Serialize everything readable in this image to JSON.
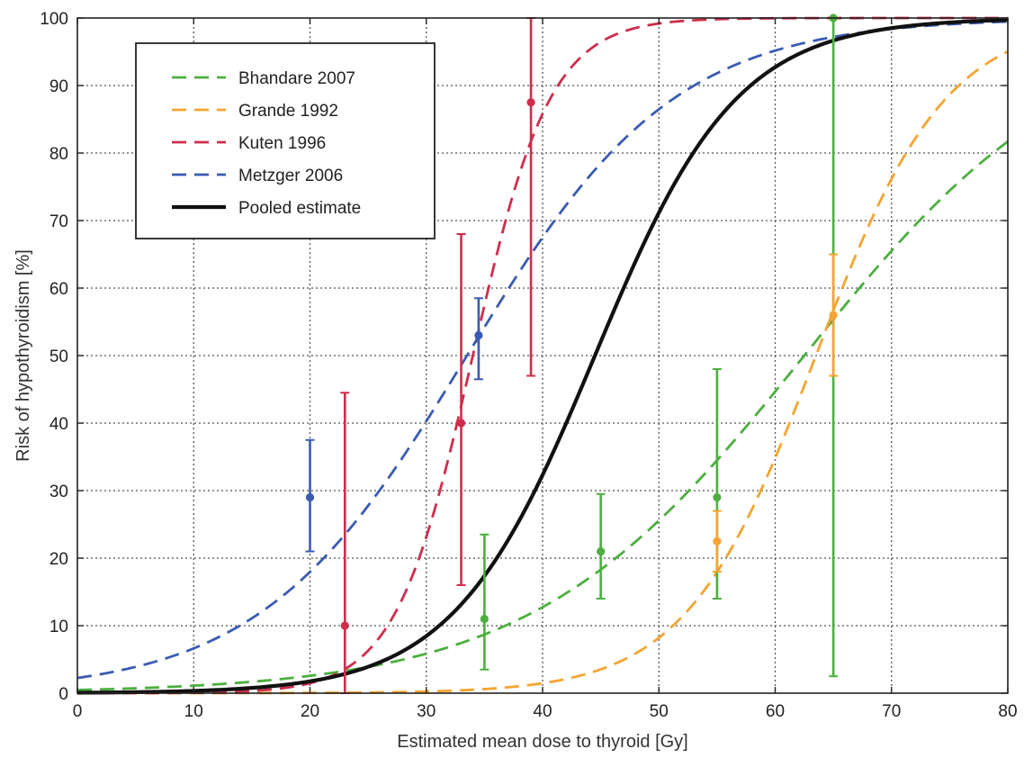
{
  "chart_data": {
    "type": "line",
    "xlabel": "Estimated mean dose to thyroid [Gy]",
    "ylabel": "Risk of hypothyroidism [%]",
    "xlim": [
      0,
      80
    ],
    "ylim": [
      0,
      100
    ],
    "xticks": [
      0,
      10,
      20,
      30,
      40,
      50,
      60,
      70,
      80
    ],
    "yticks": [
      0,
      10,
      20,
      30,
      40,
      50,
      60,
      70,
      80,
      90,
      100
    ],
    "grid": true,
    "legend_position": "top-left",
    "series": [
      {
        "name": "Bhandare 2007",
        "color": "#4caf3f",
        "style": "dashed",
        "curve": {
          "d50": 62.5,
          "k": 0.0855
        },
        "points": [
          {
            "x": 35,
            "y": 11,
            "lo": 3.5,
            "hi": 23.5
          },
          {
            "x": 45,
            "y": 21,
            "lo": 14,
            "hi": 29.5
          },
          {
            "x": 55,
            "y": 29,
            "lo": 14,
            "hi": 48
          },
          {
            "x": 65,
            "y": 100,
            "lo": 2.5,
            "hi": 100
          }
        ]
      },
      {
        "name": "Grande 1992",
        "color": "#f5a431",
        "style": "dashed",
        "curve": {
          "d50": 63.5,
          "k": 0.1788
        },
        "points": [
          {
            "x": 55,
            "y": 22.5,
            "lo": 18,
            "hi": 27
          },
          {
            "x": 65,
            "y": 56,
            "lo": 47,
            "hi": 65
          }
        ]
      },
      {
        "name": "Kuten 1996",
        "color": "#cf2d4c",
        "style": "dashed",
        "curve": {
          "d50": 34.0,
          "k": 0.3
        },
        "points": [
          {
            "x": 23,
            "y": 10,
            "lo": 0,
            "hi": 44.5
          },
          {
            "x": 33,
            "y": 40,
            "lo": 16,
            "hi": 68
          },
          {
            "x": 39,
            "y": 87.5,
            "lo": 47,
            "hi": 100
          }
        ]
      },
      {
        "name": "Metzger 2006",
        "color": "#3a5bb3",
        "style": "dashed",
        "curve": {
          "d50": 33.5,
          "k": 0.1125
        },
        "points": [
          {
            "x": 20,
            "y": 29,
            "lo": 21,
            "hi": 37.5
          },
          {
            "x": 34.5,
            "y": 53,
            "lo": 46.5,
            "hi": 58.5
          }
        ]
      },
      {
        "name": "Pooled estimate",
        "color": "#111111",
        "style": "solid",
        "curve": {
          "d50": 44.5,
          "k": 0.1642
        },
        "points": []
      }
    ]
  }
}
